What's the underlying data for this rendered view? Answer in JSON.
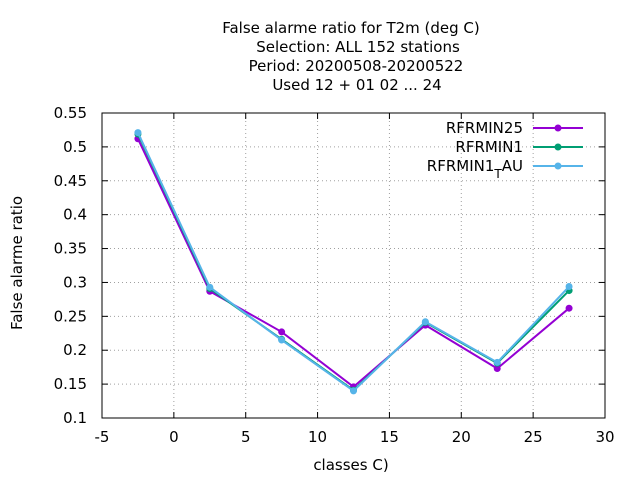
{
  "chart_data": {
    "type": "line",
    "title_lines": [
      "False alarme ratio  for T2m (deg C)",
      "Selection: ALL    152 stations",
      "Period: 20200508-20200522",
      "Used  12 + 01 02 ... 24"
    ],
    "xlabel": "classes C)",
    "ylabel": "False alarme ratio",
    "xlim": [
      -5,
      30
    ],
    "ylim": [
      0.1,
      0.55
    ],
    "xticks": [
      -5,
      0,
      5,
      10,
      15,
      20,
      25,
      30
    ],
    "xtick_labels": [
      "-5",
      "0",
      "5",
      "10",
      "15",
      "20",
      "25",
      "30"
    ],
    "yticks": [
      0.1,
      0.15,
      0.2,
      0.25,
      0.3,
      0.35,
      0.4,
      0.45,
      0.5,
      0.55
    ],
    "ytick_labels": [
      "0.1",
      "0.15",
      "0.2",
      "0.25",
      "0.3",
      "0.35",
      "0.4",
      "0.45",
      "0.5",
      "0.55"
    ],
    "grid": true,
    "legend_position": "top-right",
    "x": [
      -2.5,
      2.5,
      7.5,
      12.5,
      17.5,
      22.5,
      27.5
    ],
    "series": [
      {
        "name": "RFRMIN25",
        "color": "#9400d3",
        "values": [
          0.512,
          0.287,
          0.227,
          0.146,
          0.237,
          0.173,
          0.262
        ]
      },
      {
        "name": "RFRMIN1",
        "color": "#009e73",
        "values": [
          0.519,
          0.291,
          0.216,
          0.141,
          0.241,
          0.181,
          0.288
        ]
      },
      {
        "name": "RFRMIN1_TAU",
        "color": "#56b4e9",
        "values": [
          0.521,
          0.293,
          0.215,
          0.14,
          0.242,
          0.182,
          0.294
        ]
      }
    ]
  }
}
